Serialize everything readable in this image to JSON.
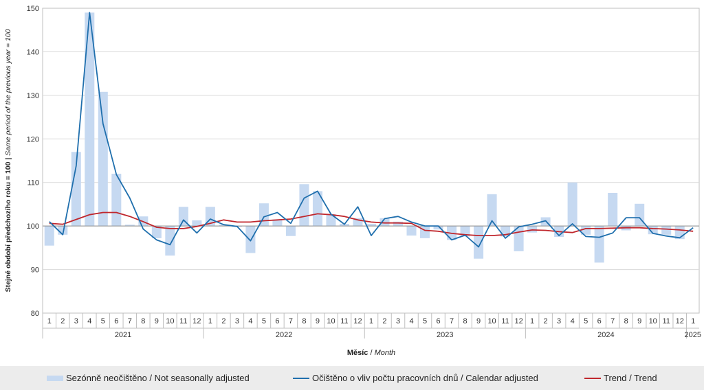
{
  "y_axis_label": {
    "bold": "Stejné období předchozího roku = 100",
    "separator": " | ",
    "italic": "Same period of the previous year = 100"
  },
  "x_axis_label": {
    "bold": "Měsíc",
    "separator": " / ",
    "italic": "Month"
  },
  "legend": {
    "not_seasonally_adjusted": "Sezónně neočištěno / Not seasonally adjusted",
    "calendar_adjusted": "Očištěno o vliv počtu pracovních dnů / Calendar adjusted",
    "trend": "Trend / Trend"
  },
  "colors": {
    "bars": "#c6d9f1",
    "calendar_line": "#1f6fad",
    "trend_line": "#c0272d",
    "grid": "#d9d9d9",
    "legend_bg": "#ececec"
  },
  "chart_data": {
    "type": "bar",
    "baseline": 100,
    "ylim": [
      80,
      150
    ],
    "yticks": [
      80,
      90,
      100,
      110,
      120,
      130,
      140,
      150
    ],
    "grid": true,
    "legend_position": "bottom",
    "categories": [
      "1",
      "2",
      "3",
      "4",
      "5",
      "6",
      "7",
      "8",
      "9",
      "10",
      "11",
      "12",
      "1",
      "2",
      "3",
      "4",
      "5",
      "6",
      "7",
      "8",
      "9",
      "10",
      "11",
      "12",
      "1",
      "2",
      "3",
      "4",
      "5",
      "6",
      "7",
      "8",
      "9",
      "10",
      "11",
      "12",
      "1",
      "2",
      "3",
      "4",
      "5",
      "6",
      "7",
      "8",
      "9",
      "10",
      "11",
      "12",
      "1"
    ],
    "years": [
      {
        "label": "2021",
        "count": 12
      },
      {
        "label": "2022",
        "count": 12
      },
      {
        "label": "2023",
        "count": 12
      },
      {
        "label": "2024",
        "count": 12
      },
      {
        "label": "2025",
        "count": 1
      }
    ],
    "series": [
      {
        "name": "Sezónně neočištěno / Not seasonally adjusted",
        "type": "bar",
        "values": [
          95.5,
          98.0,
          117.0,
          149.0,
          130.8,
          112.0,
          100.3,
          102.2,
          97.2,
          93.2,
          104.4,
          101.3,
          104.4,
          100.3,
          99.8,
          93.8,
          105.2,
          101.5,
          97.7,
          109.6,
          108.0,
          102.7,
          100.5,
          101.8,
          100.5,
          101.8,
          101.0,
          97.8,
          97.2,
          99.2,
          96.8,
          97.6,
          92.5,
          107.3,
          97.6,
          94.2,
          98.5,
          102.0,
          97.5,
          110.0,
          98.0,
          91.6,
          107.6,
          99.0,
          105.1,
          98.1,
          98.0,
          97.0,
          100.1
        ]
      },
      {
        "name": "Očištěno o vliv počtu pracovních dnů / Calendar adjusted",
        "type": "line",
        "values": [
          101.0,
          98.0,
          113.8,
          149.0,
          123.5,
          111.8,
          106.4,
          99.3,
          96.8,
          95.7,
          101.4,
          98.4,
          101.6,
          100.3,
          99.9,
          96.6,
          102.1,
          103.1,
          100.6,
          106.4,
          108.0,
          102.7,
          100.4,
          104.4,
          97.8,
          101.7,
          102.2,
          100.9,
          100.0,
          100.0,
          96.8,
          97.9,
          95.2,
          101.2,
          97.2,
          99.8,
          100.4,
          101.2,
          97.8,
          100.5,
          97.6,
          97.4,
          98.4,
          101.9,
          101.9,
          98.3,
          97.7,
          97.3,
          99.6
        ]
      },
      {
        "name": "Trend / Trend",
        "type": "line",
        "values": [
          100.6,
          100.4,
          101.5,
          102.6,
          103.1,
          103.1,
          102.2,
          101.0,
          99.7,
          99.4,
          99.4,
          99.9,
          100.6,
          101.4,
          100.9,
          100.9,
          101.2,
          101.4,
          101.6,
          102.2,
          102.8,
          102.6,
          102.2,
          101.4,
          100.9,
          100.7,
          100.7,
          100.6,
          99.0,
          98.8,
          98.3,
          98.0,
          97.8,
          97.8,
          98.0,
          98.6,
          99.1,
          99.0,
          98.7,
          98.5,
          99.4,
          99.4,
          99.5,
          99.6,
          99.6,
          99.4,
          99.3,
          99.1,
          98.8
        ]
      }
    ]
  }
}
